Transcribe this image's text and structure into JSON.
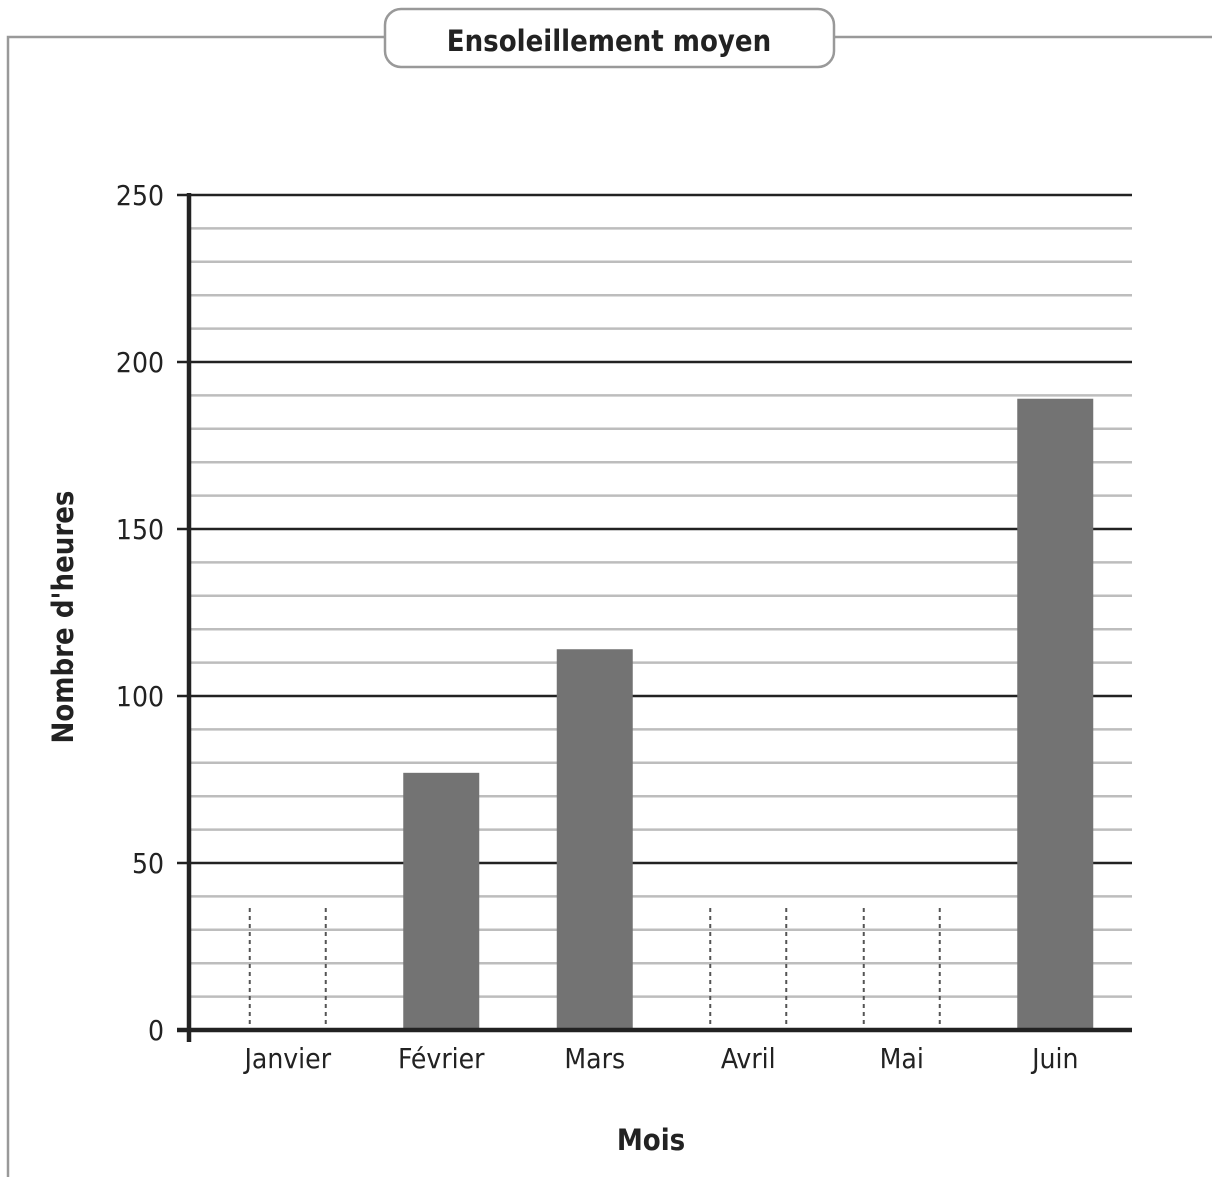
{
  "chart_data": {
    "type": "bar",
    "title": "Ensoleillement moyen",
    "xlabel": "Mois",
    "ylabel": "Nombre d'heures",
    "categories": [
      "Janvier",
      "Février",
      "Mars",
      "Avril",
      "Mai",
      "Juin"
    ],
    "values": [
      null,
      77,
      114,
      null,
      null,
      189
    ],
    "missing_placeholder": "dotted outline",
    "ylim": [
      0,
      250
    ],
    "major_ticks": [
      0,
      50,
      100,
      150,
      200,
      250
    ],
    "minor_step": 10,
    "grid": true,
    "legend": "none",
    "colors": {
      "bar": "#737373",
      "major_grid": "#222222",
      "minor_grid": "#bdbdbd",
      "axis": "#222222",
      "frame": "#999999",
      "placeholder": "#555555"
    }
  }
}
